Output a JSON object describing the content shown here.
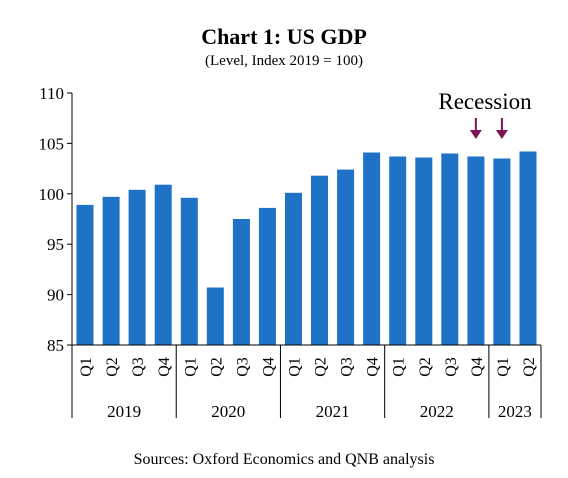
{
  "colors": {
    "bar": "#1f73c6",
    "arrow": "#7d1257",
    "axis": "#000000"
  },
  "chart_data": {
    "type": "bar",
    "title": "Chart 1: US GDP",
    "subtitle": "(Level, Index 2019 = 100)",
    "ylim": [
      85,
      110
    ],
    "yticks": [
      85,
      90,
      95,
      100,
      105,
      110
    ],
    "categories": [
      "Q1",
      "Q2",
      "Q3",
      "Q4",
      "Q1",
      "Q2",
      "Q3",
      "Q4",
      "Q1",
      "Q2",
      "Q3",
      "Q4",
      "Q1",
      "Q2",
      "Q3",
      "Q4",
      "Q1",
      "Q2"
    ],
    "groups": [
      {
        "label": "2019",
        "count": 4
      },
      {
        "label": "2020",
        "count": 4
      },
      {
        "label": "2021",
        "count": 4
      },
      {
        "label": "2022",
        "count": 4
      },
      {
        "label": "2023",
        "count": 2
      }
    ],
    "values": [
      98.9,
      99.7,
      100.4,
      100.9,
      99.6,
      90.7,
      97.5,
      98.6,
      100.1,
      101.8,
      102.4,
      104.1,
      103.7,
      103.6,
      104.0,
      103.7,
      103.5,
      104.2
    ],
    "annotation": {
      "text": "Recession",
      "arrow_indices": [
        15,
        16
      ]
    },
    "source": "Sources: Oxford Economics and QNB analysis",
    "grid": false
  }
}
